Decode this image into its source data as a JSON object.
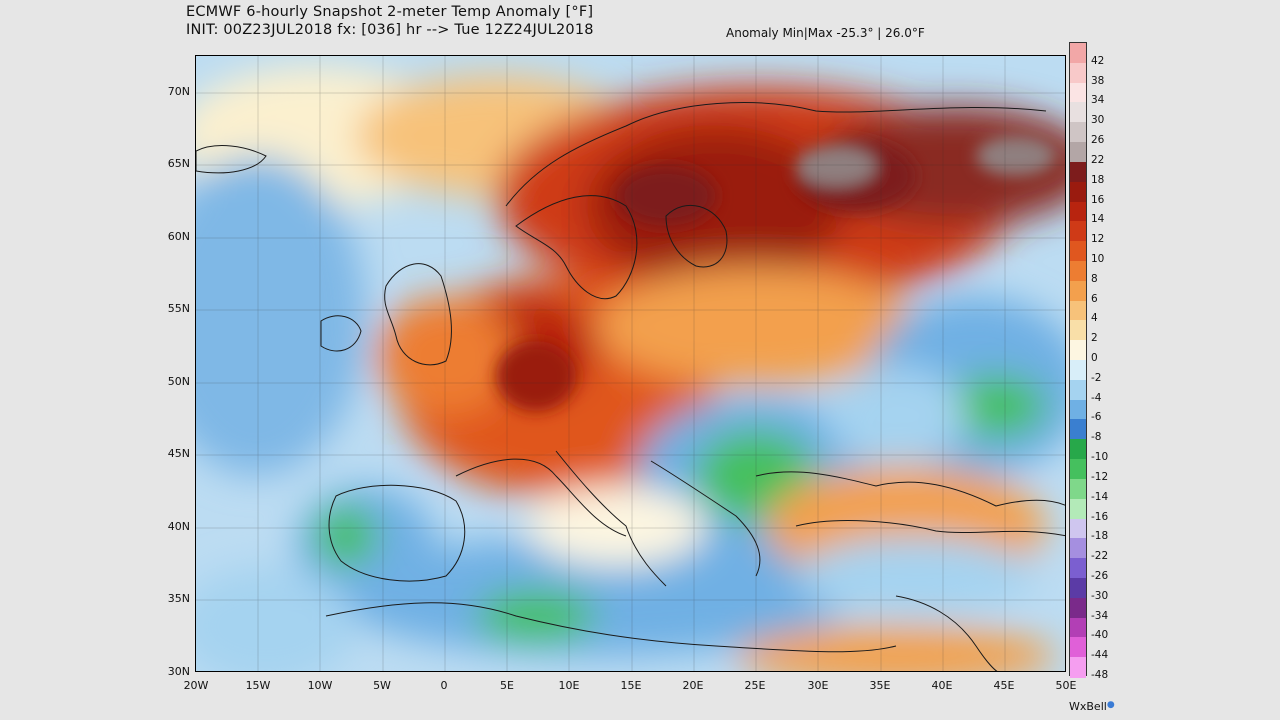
{
  "header": {
    "line1": "ECMWF 6-hourly Snapshot 2-meter Temp Anomaly [°F]",
    "line2": "INIT: 00Z23JUL2018 fx: [036] hr --> Tue 12Z24JUL2018",
    "anomaly_minmax": "Anomaly Min|Max -25.3° | 26.0°F"
  },
  "map": {
    "lat_labels": [
      "70N",
      "65N",
      "60N",
      "55N",
      "50N",
      "45N",
      "40N",
      "35N",
      "30N"
    ],
    "lon_labels": [
      "20W",
      "15W",
      "10W",
      "5W",
      "0",
      "5E",
      "10E",
      "15E",
      "20E",
      "25E",
      "30E",
      "35E",
      "40E",
      "45E",
      "50E"
    ]
  },
  "colorbar": {
    "labels": [
      "42",
      "38",
      "34",
      "30",
      "26",
      "22",
      "18",
      "16",
      "14",
      "12",
      "10",
      "8",
      "6",
      "4",
      "2",
      "0",
      "-2",
      "-4",
      "-6",
      "-8",
      "-10",
      "-12",
      "-14",
      "-16",
      "-18",
      "-22",
      "-26",
      "-30",
      "-34",
      "-40",
      "-44",
      "-48"
    ],
    "colors": [
      "#f2a7a7",
      "#f8c9c9",
      "#fbe4e4",
      "#e8e0e0",
      "#cfc5c5",
      "#b3a6a6",
      "#7d1c1c",
      "#9a1b0f",
      "#b8240f",
      "#cf3a17",
      "#e0571f",
      "#ed7d32",
      "#f3a04d",
      "#f7c27a",
      "#f9dfa8",
      "#fdf6e1",
      "#d8eef9",
      "#a5d3f0",
      "#6fb0e4",
      "#3a7fd0",
      "#27a84a",
      "#45c05e",
      "#7fd88a",
      "#b3eab8",
      "#cfc6ef",
      "#a58fe0",
      "#7b5fd0",
      "#5b3ba6",
      "#7a2a8a",
      "#b23fb5",
      "#e060d8",
      "#f59ef0"
    ]
  },
  "footer": {
    "credit": "WxBell"
  }
}
